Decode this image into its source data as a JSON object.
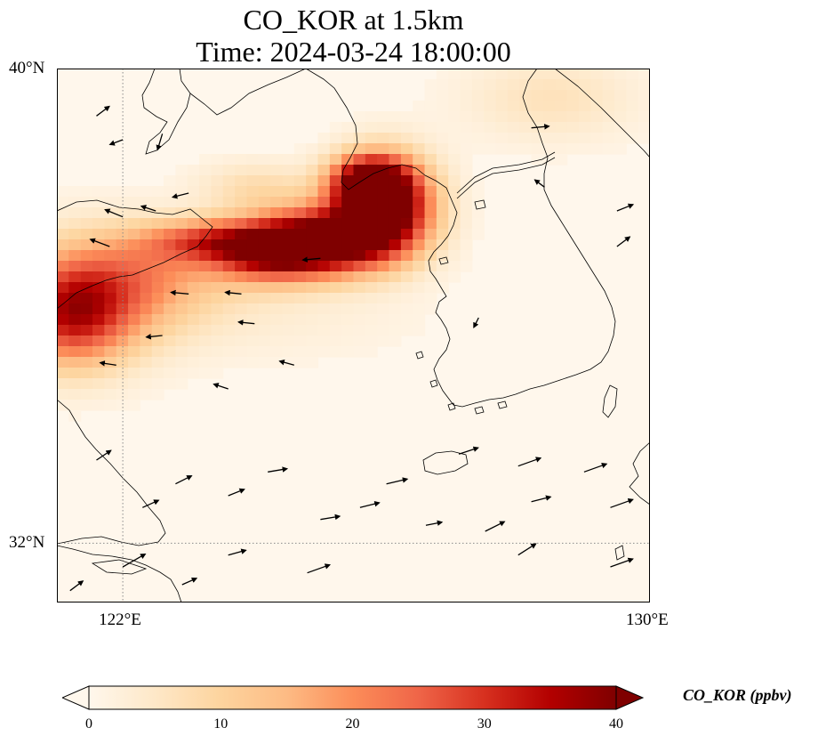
{
  "title": {
    "line1": "CO_KOR at 1.5km",
    "line2": "Time: 2024-03-24 18:00:00"
  },
  "map": {
    "projection": "PlateCarree",
    "extent": {
      "lon_min": 121,
      "lon_max": 130,
      "lat_min": 31,
      "lat_max": 40
    },
    "gridlines": {
      "lons": [
        122
      ],
      "lats": [
        32
      ],
      "style": "dotted",
      "color": "#8a8a8a"
    },
    "lat_labels": [
      {
        "value": 40,
        "text": "40°N"
      },
      {
        "value": 32,
        "text": "32°N"
      }
    ],
    "lon_labels": [
      {
        "value": 122,
        "text": "122°E"
      },
      {
        "value": 130,
        "text": "130°E"
      }
    ],
    "variable": "CO_KOR",
    "level": "1.5km"
  },
  "colorbar": {
    "label": "CO_KOR (ppbv)",
    "min": 0,
    "max": 40,
    "ticks": [
      "0",
      "10",
      "20",
      "30",
      "40"
    ],
    "colormap": "OrRd",
    "extend": "both",
    "stops": [
      "#fff7ec",
      "#fee8c8",
      "#fdd49e",
      "#fdbb84",
      "#fc8d59",
      "#ef6548",
      "#d7301f",
      "#b30000",
      "#7f0000"
    ]
  },
  "chart_data": {
    "type": "heatmap",
    "title": "CO_KOR at 1.5km",
    "subtitle": "Time: 2024-03-24 18:00:00",
    "x": "longitude (°E)",
    "y": "latitude (°N)",
    "xlim": [
      121,
      130
    ],
    "ylim": [
      31,
      40
    ],
    "value_range": [
      0,
      40
    ],
    "units": "ppbv",
    "plumes": [
      {
        "lon": 121.2,
        "lat": 35.8,
        "sx": 0.6,
        "sy": 0.6,
        "peak": 22
      },
      {
        "lon": 121.6,
        "lat": 36.2,
        "sx": 0.9,
        "sy": 0.7,
        "peak": 17
      },
      {
        "lon": 122.6,
        "lat": 36.6,
        "sx": 0.9,
        "sy": 0.5,
        "peak": 10
      },
      {
        "lon": 123.3,
        "lat": 37.1,
        "sx": 0.7,
        "sy": 0.25,
        "peak": 20
      },
      {
        "lon": 124.2,
        "lat": 36.9,
        "sx": 0.6,
        "sy": 0.35,
        "peak": 28
      },
      {
        "lon": 125.1,
        "lat": 37.1,
        "sx": 0.7,
        "sy": 0.4,
        "peak": 42
      },
      {
        "lon": 126.0,
        "lat": 37.7,
        "sx": 0.5,
        "sy": 0.55,
        "peak": 44
      },
      {
        "lon": 125.7,
        "lat": 38.1,
        "sx": 0.4,
        "sy": 0.3,
        "peak": 30
      },
      {
        "lon": 124.0,
        "lat": 38.0,
        "sx": 0.6,
        "sy": 0.3,
        "peak": 7
      },
      {
        "lon": 128.5,
        "lat": 39.5,
        "sx": 0.9,
        "sy": 0.5,
        "peak": 6
      },
      {
        "lon": 124.0,
        "lat": 35.8,
        "sx": 1.6,
        "sy": 0.5,
        "peak": 2.5
      }
    ],
    "wind_vectors": [
      {
        "lon": 121.6,
        "lat": 39.2,
        "u": 1.6,
        "v": 1.2
      },
      {
        "lon": 122.0,
        "lat": 38.8,
        "u": -1.6,
        "v": -0.6
      },
      {
        "lon": 122.6,
        "lat": 38.9,
        "u": -0.6,
        "v": -2.0
      },
      {
        "lon": 123.0,
        "lat": 37.9,
        "u": -2.0,
        "v": -0.5
      },
      {
        "lon": 122.0,
        "lat": 37.5,
        "u": -2.2,
        "v": 0.9
      },
      {
        "lon": 121.8,
        "lat": 37.0,
        "u": -2.4,
        "v": 0.9
      },
      {
        "lon": 122.5,
        "lat": 37.6,
        "u": -1.8,
        "v": 0.6
      },
      {
        "lon": 123.0,
        "lat": 36.2,
        "u": -2.2,
        "v": 0.2
      },
      {
        "lon": 123.8,
        "lat": 36.2,
        "u": -2.0,
        "v": 0.2
      },
      {
        "lon": 124.0,
        "lat": 35.7,
        "u": -2.0,
        "v": 0.2
      },
      {
        "lon": 122.6,
        "lat": 35.5,
        "u": -2.0,
        "v": -0.2
      },
      {
        "lon": 121.9,
        "lat": 35.0,
        "u": -2.0,
        "v": 0.3
      },
      {
        "lon": 123.6,
        "lat": 34.6,
        "u": -1.8,
        "v": 0.6
      },
      {
        "lon": 124.6,
        "lat": 35.0,
        "u": -1.8,
        "v": 0.5
      },
      {
        "lon": 125.0,
        "lat": 36.8,
        "u": -2.2,
        "v": -0.2
      },
      {
        "lon": 127.4,
        "lat": 35.8,
        "u": -0.6,
        "v": -1.2
      },
      {
        "lon": 128.4,
        "lat": 38.0,
        "u": -1.2,
        "v": 0.9
      },
      {
        "lon": 128.2,
        "lat": 39.0,
        "u": 2.2,
        "v": 0.2
      },
      {
        "lon": 129.5,
        "lat": 37.6,
        "u": 2.0,
        "v": 0.8
      },
      {
        "lon": 129.5,
        "lat": 37.0,
        "u": 1.6,
        "v": 1.2
      },
      {
        "lon": 121.6,
        "lat": 33.4,
        "u": 1.8,
        "v": 1.2
      },
      {
        "lon": 122.3,
        "lat": 32.6,
        "u": 2.0,
        "v": 0.9
      },
      {
        "lon": 122.8,
        "lat": 33.0,
        "u": 2.0,
        "v": 1.0
      },
      {
        "lon": 123.6,
        "lat": 32.8,
        "u": 2.0,
        "v": 0.8
      },
      {
        "lon": 124.2,
        "lat": 33.2,
        "u": 2.4,
        "v": 0.4
      },
      {
        "lon": 125.0,
        "lat": 32.4,
        "u": 2.4,
        "v": 0.4
      },
      {
        "lon": 125.6,
        "lat": 32.6,
        "u": 2.4,
        "v": 0.6
      },
      {
        "lon": 126.0,
        "lat": 33.0,
        "u": 2.6,
        "v": 0.6
      },
      {
        "lon": 127.1,
        "lat": 33.5,
        "u": 2.4,
        "v": 0.8
      },
      {
        "lon": 128.0,
        "lat": 33.3,
        "u": 2.8,
        "v": 1.0
      },
      {
        "lon": 128.2,
        "lat": 32.7,
        "u": 2.4,
        "v": 0.6
      },
      {
        "lon": 129.0,
        "lat": 33.2,
        "u": 2.8,
        "v": 1.0
      },
      {
        "lon": 129.4,
        "lat": 32.6,
        "u": 2.8,
        "v": 1.0
      },
      {
        "lon": 127.5,
        "lat": 32.2,
        "u": 2.4,
        "v": 1.2
      },
      {
        "lon": 128.0,
        "lat": 31.8,
        "u": 2.2,
        "v": 1.4
      },
      {
        "lon": 126.6,
        "lat": 32.3,
        "u": 2.0,
        "v": 0.4
      },
      {
        "lon": 124.8,
        "lat": 31.5,
        "u": 2.8,
        "v": 1.0
      },
      {
        "lon": 122.0,
        "lat": 31.6,
        "u": 2.8,
        "v": 1.6
      },
      {
        "lon": 123.6,
        "lat": 31.8,
        "u": 2.2,
        "v": 0.6
      },
      {
        "lon": 129.4,
        "lat": 31.6,
        "u": 2.8,
        "v": 1.0
      },
      {
        "lon": 121.2,
        "lat": 31.2,
        "u": 1.6,
        "v": 1.2
      },
      {
        "lon": 122.9,
        "lat": 31.3,
        "u": 1.8,
        "v": 0.8
      }
    ]
  }
}
